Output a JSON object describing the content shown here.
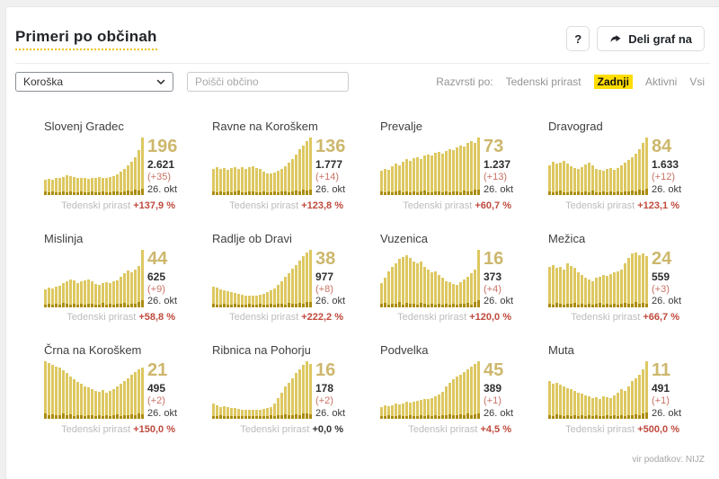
{
  "page": {
    "title": "Primeri po občinah",
    "help_button": "?",
    "share_button": "Deli graf na",
    "source": "vir podatkov: NIJZ"
  },
  "filters": {
    "region_selected": "Koroška",
    "search_placeholder": "Poišči občino",
    "sort_label": "Razvrsti po:",
    "sort_options": [
      {
        "label": "Tedenski prirast",
        "active": false
      },
      {
        "label": "Zadnji",
        "active": true
      },
      {
        "label": "Aktivni",
        "active": false
      },
      {
        "label": "Vsi",
        "active": false
      }
    ]
  },
  "colors": {
    "bar_light": "#ddc861",
    "bar_dark": "#ab8c0e",
    "accent_yellow": "#ffdd00",
    "active_number": "#cdb76d",
    "growth_red": "#bf4a3d"
  },
  "chart_type": "bar",
  "cards": [
    {
      "title": "Slovenj Gradec",
      "active": "196",
      "total": "2.621",
      "delta": "(+35)",
      "date": "26. okt",
      "growth_label": "Tedenski prirast",
      "growth": "+137,9 %",
      "growth_positive": true,
      "bars": [
        26,
        28,
        27,
        29,
        30,
        32,
        34,
        33,
        32,
        30,
        29,
        30,
        28,
        29,
        30,
        31,
        30,
        29,
        31,
        33,
        36,
        40,
        46,
        52,
        58,
        66,
        78,
        100
      ],
      "darks": [
        6,
        4,
        7,
        5,
        4,
        6,
        5,
        7,
        4,
        5,
        6,
        4,
        5,
        7,
        5,
        4,
        6,
        5,
        4,
        6,
        7,
        5,
        6,
        8,
        7,
        9,
        8,
        11
      ]
    },
    {
      "title": "Ravne na Koroškem",
      "active": "136",
      "total": "1.777",
      "delta": "(+14)",
      "date": "26. okt",
      "growth_label": "Tedenski prirast",
      "growth": "+123,8 %",
      "growth_positive": true,
      "bars": [
        46,
        48,
        45,
        47,
        44,
        47,
        49,
        46,
        48,
        45,
        48,
        50,
        47,
        45,
        41,
        38,
        37,
        39,
        42,
        46,
        50,
        56,
        63,
        71,
        79,
        86,
        93,
        100
      ],
      "darks": [
        7,
        5,
        6,
        4,
        7,
        5,
        6,
        8,
        5,
        4,
        6,
        7,
        5,
        4,
        6,
        5,
        4,
        6,
        5,
        7,
        6,
        5,
        7,
        8,
        6,
        9,
        8,
        10
      ]
    },
    {
      "title": "Prevalje",
      "active": "73",
      "total": "1.237",
      "delta": "(+13)",
      "date": "26. okt",
      "growth_label": "Tedenski prirast",
      "growth": "+60,7 %",
      "growth_positive": true,
      "bars": [
        42,
        46,
        44,
        50,
        54,
        52,
        58,
        62,
        60,
        64,
        66,
        63,
        68,
        71,
        69,
        73,
        75,
        72,
        77,
        80,
        78,
        83,
        86,
        84,
        90,
        94,
        91,
        100
      ],
      "darks": [
        6,
        5,
        7,
        4,
        6,
        8,
        5,
        6,
        4,
        7,
        5,
        6,
        8,
        5,
        4,
        6,
        7,
        5,
        6,
        4,
        7,
        6,
        5,
        8,
        7,
        6,
        9,
        10
      ]
    },
    {
      "title": "Dravograd",
      "active": "84",
      "total": "1.633",
      "delta": "(+12)",
      "date": "26. okt",
      "growth_label": "Tedenski prirast",
      "growth": "+123,1 %",
      "growth_positive": true,
      "bars": [
        52,
        58,
        54,
        57,
        60,
        55,
        50,
        47,
        45,
        49,
        53,
        56,
        51,
        46,
        44,
        42,
        45,
        47,
        44,
        47,
        51,
        56,
        61,
        66,
        72,
        80,
        90,
        100
      ],
      "darks": [
        7,
        5,
        6,
        8,
        5,
        4,
        6,
        5,
        7,
        4,
        6,
        5,
        8,
        5,
        4,
        6,
        5,
        7,
        4,
        6,
        5,
        7,
        6,
        8,
        7,
        9,
        8,
        11
      ]
    },
    {
      "title": "Mislinja",
      "active": "44",
      "total": "625",
      "delta": "(+9)",
      "date": "26. okt",
      "growth_label": "Tedenski prirast",
      "growth": "+58,8 %",
      "growth_positive": true,
      "bars": [
        32,
        35,
        33,
        36,
        38,
        42,
        46,
        49,
        47,
        42,
        45,
        47,
        48,
        45,
        41,
        39,
        42,
        44,
        42,
        45,
        47,
        53,
        60,
        64,
        61,
        66,
        72,
        100
      ],
      "darks": [
        5,
        7,
        4,
        6,
        5,
        8,
        6,
        5,
        7,
        4,
        6,
        5,
        7,
        6,
        4,
        5,
        8,
        5,
        6,
        4,
        7,
        6,
        8,
        5,
        7,
        6,
        9,
        12
      ]
    },
    {
      "title": "Radlje ob Dravi",
      "active": "38",
      "total": "977",
      "delta": "(+8)",
      "date": "26. okt",
      "growth_label": "Tedenski prirast",
      "growth": "+222,2 %",
      "growth_positive": true,
      "bars": [
        36,
        34,
        32,
        30,
        28,
        26,
        25,
        23,
        22,
        21,
        20,
        20,
        21,
        22,
        24,
        26,
        29,
        33,
        39,
        46,
        53,
        60,
        67,
        74,
        82,
        89,
        96,
        100
      ],
      "darks": [
        6,
        4,
        5,
        7,
        4,
        5,
        6,
        4,
        5,
        4,
        6,
        4,
        5,
        6,
        4,
        5,
        7,
        5,
        6,
        7,
        5,
        8,
        6,
        7,
        8,
        6,
        9,
        10
      ]
    },
    {
      "title": "Vuzenica",
      "active": "16",
      "total": "373",
      "delta": "(+4)",
      "date": "26. okt",
      "growth_label": "Tedenski prirast",
      "growth": "+120,0 %",
      "growth_positive": true,
      "bars": [
        42,
        52,
        62,
        70,
        76,
        85,
        88,
        90,
        86,
        80,
        76,
        79,
        71,
        66,
        61,
        63,
        56,
        51,
        46,
        43,
        41,
        39,
        43,
        49,
        53,
        59,
        66,
        100
      ],
      "darks": [
        6,
        8,
        5,
        7,
        6,
        9,
        5,
        8,
        6,
        7,
        5,
        8,
        6,
        5,
        7,
        4,
        6,
        5,
        7,
        4,
        6,
        5,
        7,
        6,
        8,
        5,
        9,
        12
      ]
    },
    {
      "title": "Mežica",
      "active": "24",
      "total": "559",
      "delta": "(+3)",
      "date": "26. okt",
      "growth_label": "Tedenski prirast",
      "growth": "+66,7 %",
      "growth_positive": true,
      "bars": [
        70,
        73,
        68,
        71,
        66,
        76,
        72,
        69,
        61,
        56,
        51,
        48,
        46,
        51,
        53,
        56,
        55,
        58,
        61,
        63,
        66,
        76,
        86,
        93,
        96,
        91,
        93,
        89
      ],
      "darks": [
        7,
        5,
        8,
        6,
        5,
        7,
        6,
        8,
        5,
        6,
        4,
        7,
        5,
        6,
        8,
        5,
        6,
        4,
        7,
        5,
        6,
        8,
        6,
        7,
        9,
        6,
        8,
        7
      ]
    },
    {
      "title": "Črna na Koroškem",
      "active": "21",
      "total": "495",
      "delta": "(+2)",
      "date": "26. okt",
      "growth_label": "Tedenski prirast",
      "growth": "+150,0 %",
      "growth_positive": true,
      "bars": [
        100,
        97,
        94,
        91,
        89,
        84,
        79,
        74,
        69,
        64,
        61,
        57,
        54,
        51,
        49,
        47,
        50,
        45,
        48,
        52,
        56,
        61,
        66,
        71,
        76,
        81,
        86,
        89
      ],
      "darks": [
        9,
        7,
        8,
        6,
        7,
        9,
        6,
        8,
        5,
        7,
        6,
        5,
        7,
        6,
        4,
        6,
        5,
        7,
        5,
        6,
        8,
        5,
        7,
        6,
        8,
        7,
        9,
        8
      ]
    },
    {
      "title": "Ribnica na Pohorju",
      "active": "16",
      "total": "178",
      "delta": "(+2)",
      "date": "26. okt",
      "growth_label": "Tedenski prirast",
      "growth": "+0,0 %",
      "growth_positive": false,
      "bars": [
        26,
        23,
        21,
        22,
        20,
        19,
        18,
        17,
        16,
        16,
        15,
        16,
        15,
        16,
        17,
        19,
        21,
        26,
        36,
        46,
        56,
        63,
        71,
        79,
        86,
        93,
        100,
        96
      ],
      "darks": [
        5,
        4,
        6,
        4,
        5,
        4,
        5,
        4,
        5,
        4,
        4,
        5,
        4,
        5,
        4,
        5,
        6,
        5,
        7,
        6,
        8,
        6,
        7,
        8,
        7,
        9,
        10,
        8
      ]
    },
    {
      "title": "Podvelka",
      "active": "45",
      "total": "389",
      "delta": "(+1)",
      "date": "26. okt",
      "growth_label": "Tedenski prirast",
      "growth": "+4,5 %",
      "growth_positive": true,
      "bars": [
        21,
        23,
        22,
        24,
        26,
        25,
        27,
        29,
        28,
        30,
        31,
        33,
        35,
        34,
        36,
        39,
        42,
        47,
        56,
        63,
        69,
        73,
        76,
        81,
        86,
        91,
        96,
        100
      ],
      "darks": [
        5,
        4,
        6,
        4,
        5,
        6,
        4,
        5,
        6,
        4,
        5,
        7,
        5,
        6,
        4,
        6,
        5,
        7,
        6,
        8,
        6,
        7,
        8,
        6,
        9,
        7,
        8,
        10
      ]
    },
    {
      "title": "Muta",
      "active": "11",
      "total": "491",
      "delta": "(+1)",
      "date": "26. okt",
      "growth_label": "Tedenski prirast",
      "growth": "+500,0 %",
      "growth_positive": true,
      "bars": [
        66,
        61,
        63,
        59,
        56,
        53,
        51,
        49,
        46,
        43,
        41,
        39,
        36,
        37,
        35,
        39,
        37,
        36,
        41,
        46,
        51,
        49,
        56,
        66,
        71,
        76,
        86,
        100
      ],
      "darks": [
        7,
        5,
        8,
        6,
        5,
        7,
        5,
        6,
        4,
        6,
        5,
        7,
        4,
        6,
        5,
        4,
        6,
        5,
        7,
        5,
        6,
        4,
        7,
        6,
        8,
        6,
        9,
        11
      ]
    }
  ]
}
